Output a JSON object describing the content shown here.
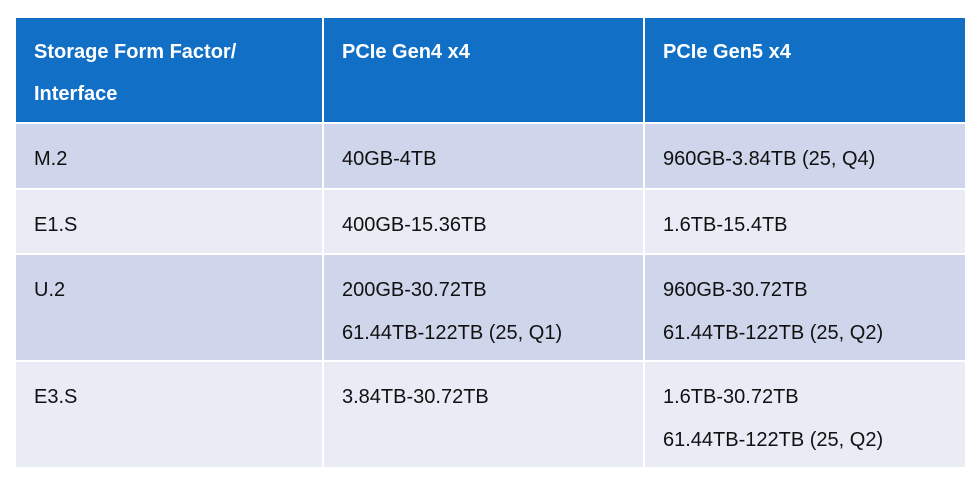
{
  "table": {
    "header": [
      [
        "Storage Form Factor/",
        "Interface"
      ],
      [
        "PCIe Gen4 x4"
      ],
      [
        "PCIe Gen5 x4"
      ]
    ],
    "rows": [
      [
        [
          "M.2"
        ],
        [
          "40GB-4TB"
        ],
        [
          "960GB-3.84TB (25, Q4)"
        ]
      ],
      [
        [
          "E1.S"
        ],
        [
          "400GB-15.36TB"
        ],
        [
          "1.6TB-15.4TB"
        ]
      ],
      [
        [
          "U.2"
        ],
        [
          "200GB-30.72TB",
          "61.44TB-122TB (25, Q1)"
        ],
        [
          "960GB-30.72TB",
          "61.44TB-122TB (25, Q2)"
        ]
      ],
      [
        [
          "E3.S"
        ],
        [
          "3.84TB-30.72TB"
        ],
        [
          "1.6TB-30.72TB",
          "61.44TB-122TB (25, Q2)"
        ]
      ]
    ]
  }
}
